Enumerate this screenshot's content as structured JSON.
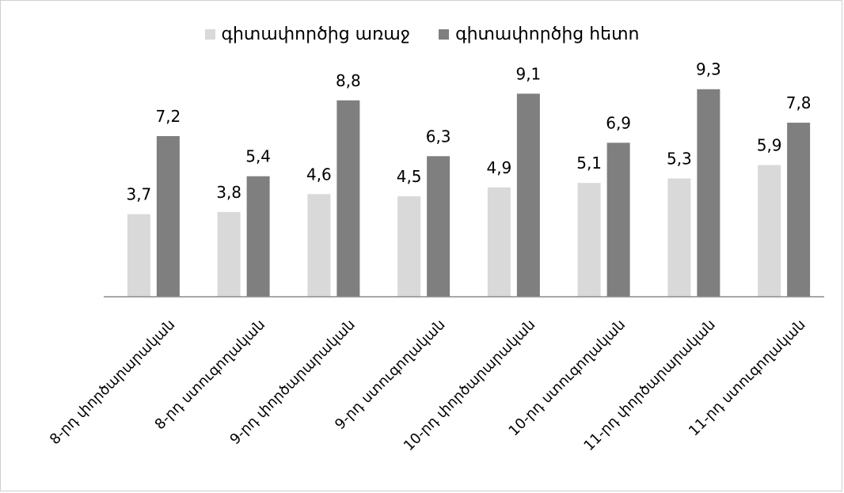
{
  "chart_data": {
    "type": "bar",
    "categories": [
      "8-րդ փործարարական",
      "8-րդ ստուգողական",
      "9-րդ փործարարական",
      "9-րդ ստուգողական",
      "10-րդ փործարարական",
      "10-րդ ստուգողական",
      "11-րդ փործարարական",
      "11-րդ ստուգողական"
    ],
    "series": [
      {
        "name": "գիտափործից առաջ",
        "values": [
          3.7,
          3.8,
          4.6,
          4.5,
          4.9,
          5.1,
          5.3,
          5.9
        ],
        "labels": [
          "3,7",
          "3,8",
          "4,6",
          "4,5",
          "4,9",
          "5,1",
          "5,3",
          "5,9"
        ],
        "color": "#d9d9d9"
      },
      {
        "name": "գիտափործից հետո",
        "values": [
          7.2,
          5.4,
          8.8,
          6.3,
          9.1,
          6.9,
          9.3,
          7.8
        ],
        "labels": [
          "7,2",
          "5,4",
          "8,8",
          "6,3",
          "9,1",
          "6,9",
          "9,3",
          "7,8"
        ],
        "color": "#7f7f7f"
      }
    ],
    "title": "",
    "xlabel": "",
    "ylabel": "",
    "ylim": [
      0,
      10
    ],
    "legend": "top",
    "grid": false
  }
}
